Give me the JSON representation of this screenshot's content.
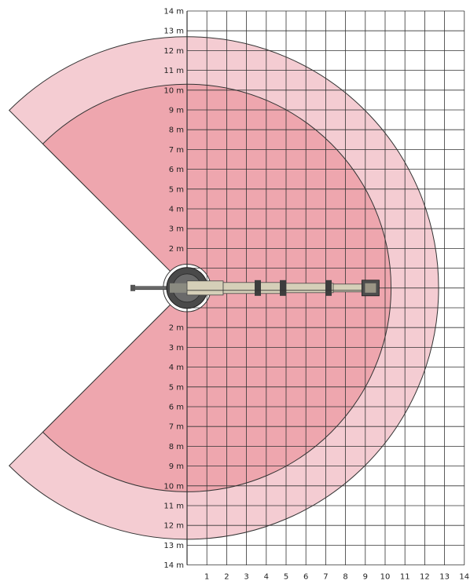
{
  "chart_data": {
    "type": "range-diagram",
    "x_axis": {
      "ticks": [
        1,
        2,
        3,
        4,
        5,
        6,
        7,
        8,
        9,
        10,
        11,
        12,
        13,
        14
      ],
      "range": [
        0,
        14
      ]
    },
    "y_axis": {
      "range": [
        -14,
        14
      ],
      "ticks_upper": [
        "14 m",
        "13 m",
        "12 m",
        "11 m",
        "10 m",
        "9 m",
        "8 m",
        "7 m",
        "6 m",
        "5 m",
        "4 m",
        "3 m",
        "2 m"
      ],
      "ticks_lower": [
        "2 m",
        "3 m",
        "4 m",
        "5 m",
        "6 m",
        "7 m",
        "8 m",
        "9 m",
        "10 m",
        "11 m",
        "12 m",
        "13 m",
        "14 m"
      ]
    },
    "grid": true,
    "zones": [
      {
        "outer_radius_m": 12.7,
        "opening_half_angle_deg": 45,
        "color": "#f4ccd2"
      },
      {
        "outer_radius_m": 10.3,
        "opening_half_angle_deg": 45,
        "color": "#eea6ae"
      }
    ],
    "inner_clearance_radius_m": 1.2,
    "boom_reach_m": 9.7,
    "colors": {
      "outer_zone": "#f4ccd2",
      "inner_zone": "#eea6ae",
      "grid_line": "#333333",
      "boom": "#d5cfb8",
      "machine": "#4a4a4a"
    }
  }
}
